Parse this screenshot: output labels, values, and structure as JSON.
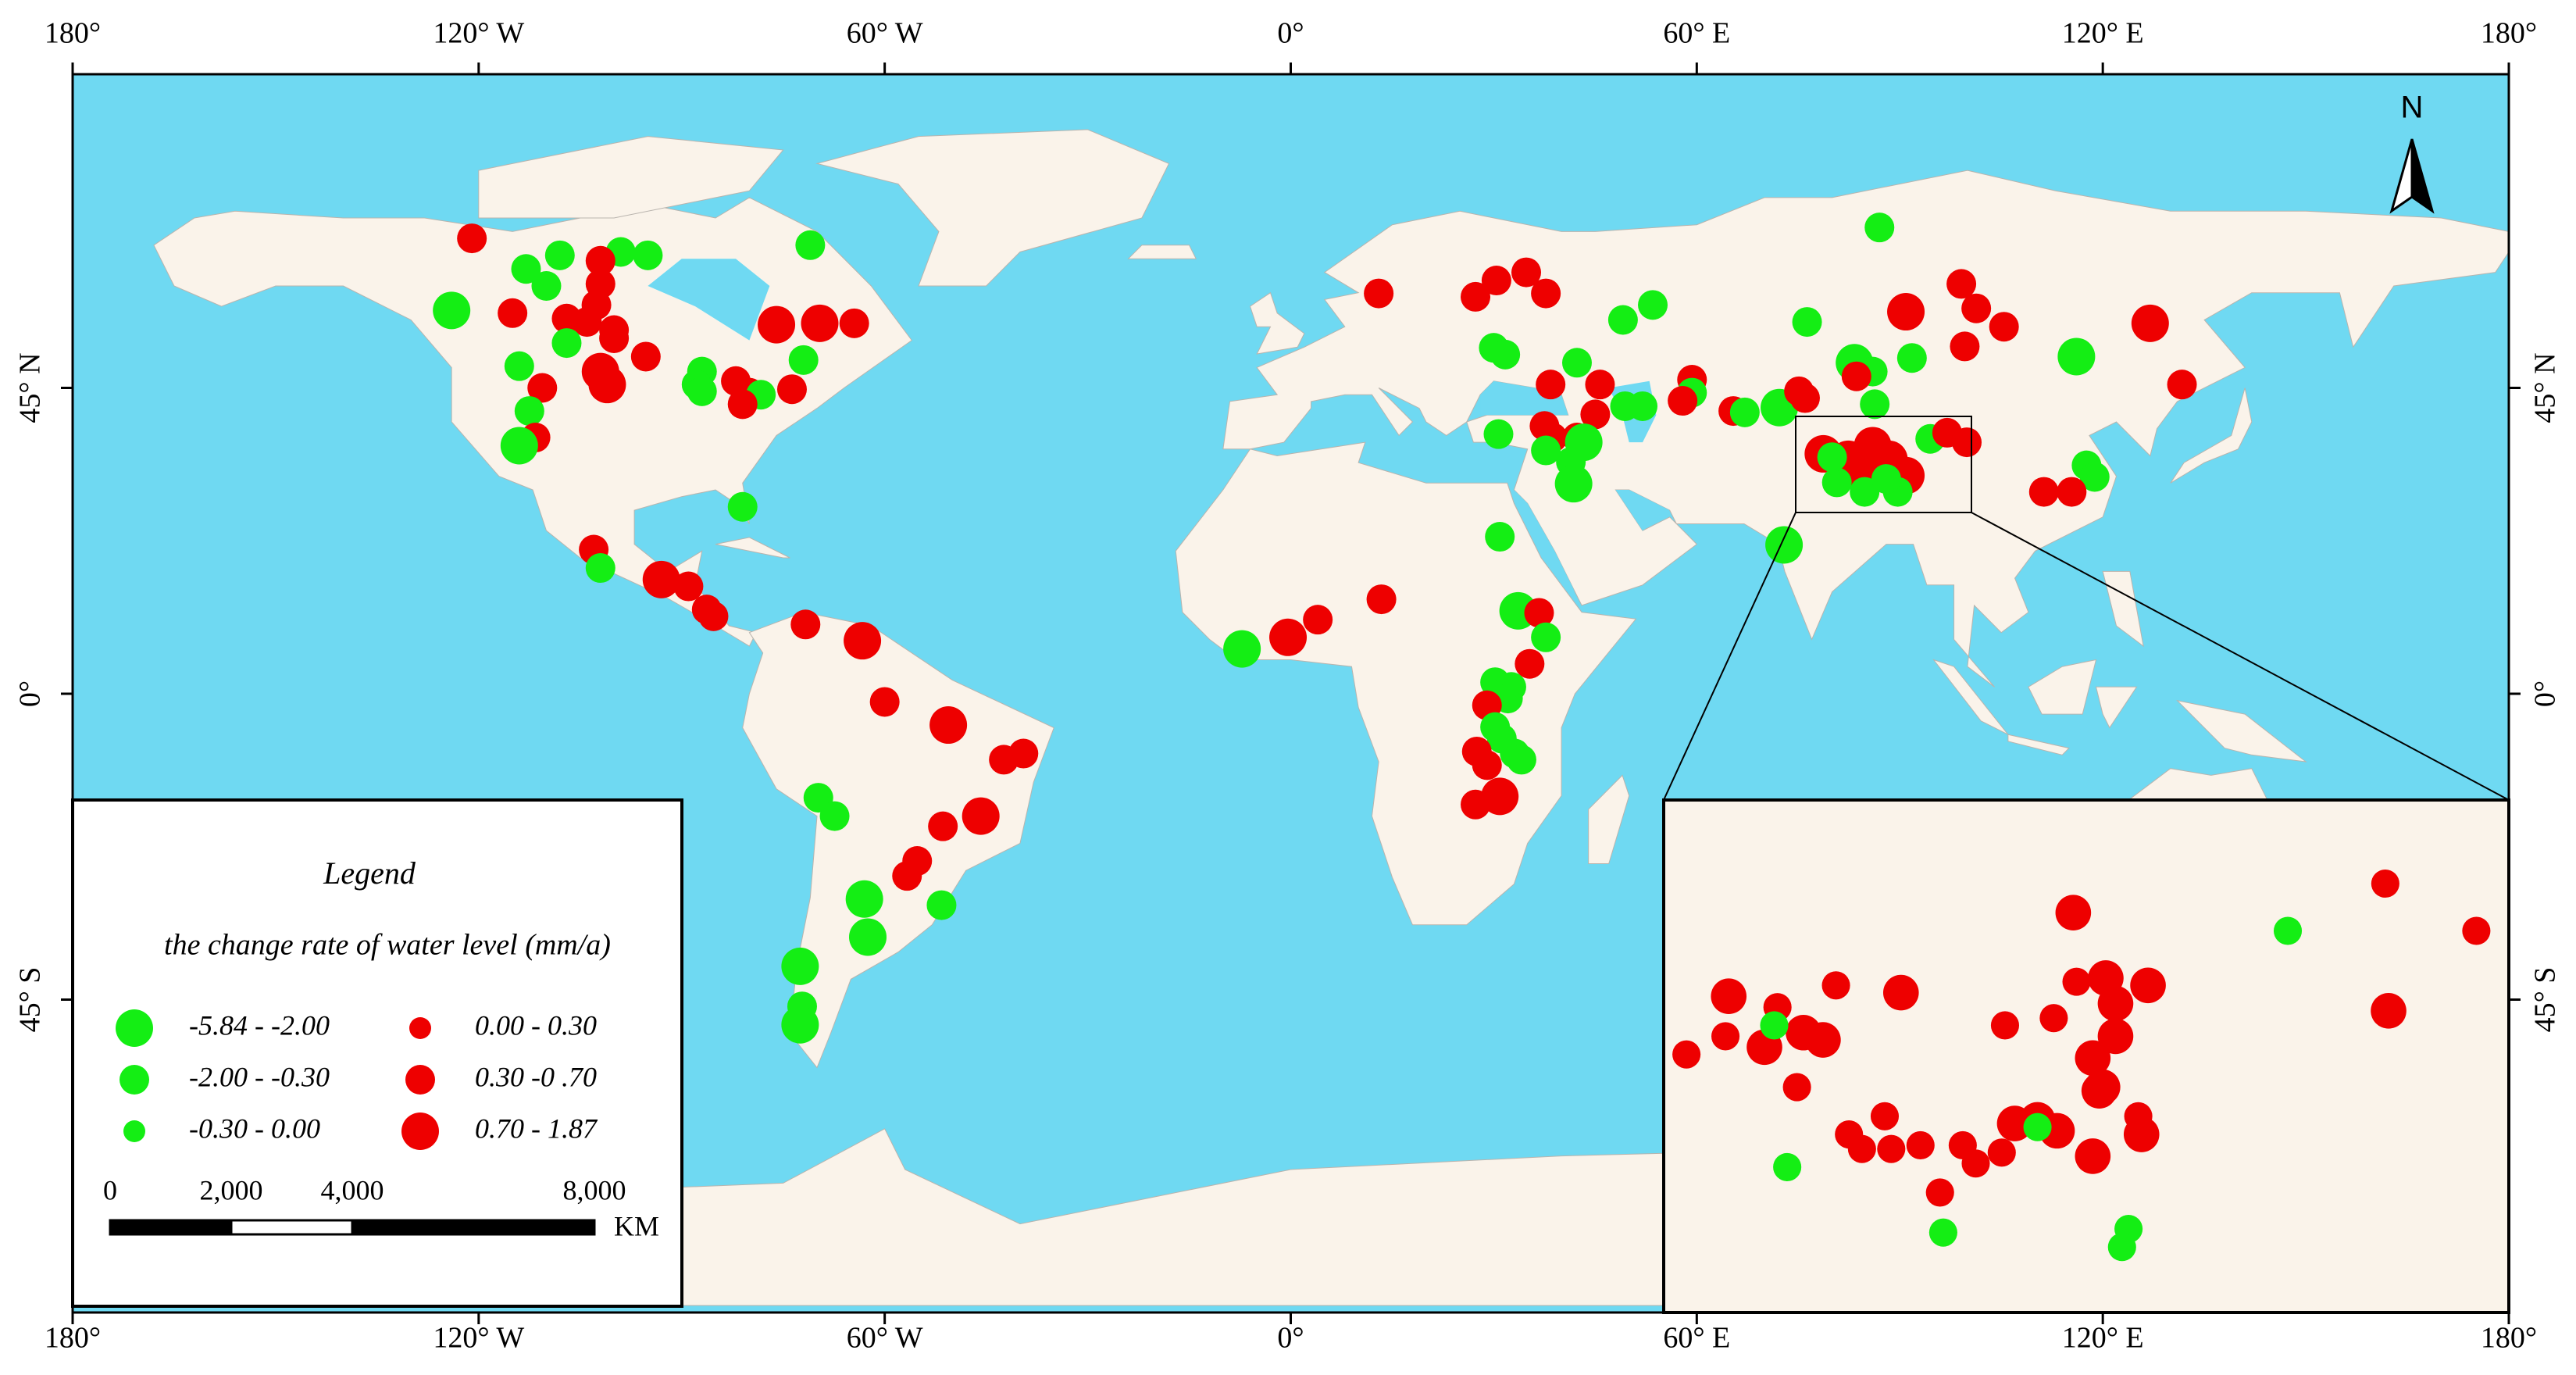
{
  "map": {
    "lon_ticks": [
      {
        "value": -180,
        "label": "180°"
      },
      {
        "value": -120,
        "label": "120° W"
      },
      {
        "value": -60,
        "label": "60° W"
      },
      {
        "value": 0,
        "label": "0°"
      },
      {
        "value": 60,
        "label": "60° E"
      },
      {
        "value": 120,
        "label": "120° E"
      },
      {
        "value": 180,
        "label": "180°"
      }
    ],
    "lat_ticks": [
      {
        "value": 45,
        "label": "45° N"
      },
      {
        "value": 0,
        "label": "0°"
      },
      {
        "value": -45,
        "label": "45° S"
      }
    ],
    "north": "N"
  },
  "legend": {
    "title": "Legend",
    "subtitle": "the change rate of water level (mm/a)",
    "classes": [
      {
        "label": "-5.84 - -2.00",
        "color": "#14ee14"
      },
      {
        "label": "-2.00 - -0.30",
        "color": "#14ee14"
      },
      {
        "label": "-0.30 - 0.00",
        "color": "#14ee14"
      },
      {
        "label": "0.00 - 0.30",
        "color": "#ee0000"
      },
      {
        "label": "0.30 -0 .70",
        "color": "#ee0000"
      },
      {
        "label": "0.70 - 1.87",
        "color": "#ee0000"
      }
    ]
  },
  "scale_bar": {
    "ticks": [
      0,
      {
        "value": 2000,
        "label": "2,000"
      },
      {
        "value": 4000,
        "label": "4,000"
      },
      {
        "value": 8000,
        "label": "8,000"
      }
    ],
    "unit": "KM"
  },
  "points": [
    [
      -121,
      67,
      4
    ],
    [
      -113,
      62.5,
      1
    ],
    [
      -108,
      64.5,
      1
    ],
    [
      -99,
      65,
      1
    ],
    [
      -95,
      64.5,
      1
    ],
    [
      -71,
      66,
      1
    ],
    [
      -110,
      60,
      1
    ],
    [
      -102,
      63.7,
      4
    ],
    [
      -102,
      60.3,
      4
    ],
    [
      -102.6,
      57.2,
      4
    ],
    [
      -124,
      56.4,
      0
    ],
    [
      -115,
      56,
      4
    ],
    [
      -107,
      55.2,
      4
    ],
    [
      -104,
      54.7,
      4
    ],
    [
      -100,
      53.5,
      4
    ],
    [
      -107,
      51.6,
      1
    ],
    [
      -100,
      52.3,
      4
    ],
    [
      -95.3,
      49.6,
      4
    ],
    [
      -114,
      48.2,
      1
    ],
    [
      -102,
      47.4,
      5
    ],
    [
      -101,
      45.5,
      5
    ],
    [
      -110.6,
      45,
      4
    ],
    [
      -112.5,
      41.6,
      1
    ],
    [
      -111.6,
      37.7,
      4
    ],
    [
      -114,
      36.5,
      0
    ],
    [
      -87,
      47.4,
      1
    ],
    [
      -87.8,
      45.5,
      1
    ],
    [
      -87,
      44.5,
      1
    ],
    [
      -82,
      46,
      4
    ],
    [
      -80,
      44.3,
      4
    ],
    [
      -78.3,
      44,
      1
    ],
    [
      -81,
      42.6,
      4
    ],
    [
      -76,
      54.3,
      5
    ],
    [
      -69.6,
      54.5,
      5
    ],
    [
      -64.5,
      54.5,
      4
    ],
    [
      -72,
      49.1,
      1
    ],
    [
      -73.7,
      44.8,
      4
    ],
    [
      -81,
      27.5,
      1
    ],
    [
      -103,
      21.2,
      4
    ],
    [
      -102,
      18.5,
      1
    ],
    [
      -93,
      16.8,
      5
    ],
    [
      -89,
      15.8,
      4
    ],
    [
      -86.3,
      12.4,
      4
    ],
    [
      -85.3,
      11.4,
      4
    ],
    [
      -71.7,
      10.2,
      4
    ],
    [
      -63.3,
      7.8,
      5
    ],
    [
      -60,
      -1.2,
      4
    ],
    [
      -50.6,
      -4.6,
      5
    ],
    [
      -42.4,
      -9.7,
      4
    ],
    [
      -39.5,
      -8.8,
      4
    ],
    [
      -69.8,
      -15.3,
      1
    ],
    [
      -67.4,
      -18,
      1
    ],
    [
      -51.4,
      -19.5,
      4
    ],
    [
      -45.8,
      -18,
      5
    ],
    [
      -56.7,
      -26.8,
      4
    ],
    [
      -55.2,
      -24.6,
      4
    ],
    [
      -63,
      -30.2,
      0
    ],
    [
      -51.6,
      -31.1,
      1
    ],
    [
      -62.5,
      -35.8,
      0
    ],
    [
      -72.5,
      -40.1,
      0
    ],
    [
      -72.2,
      -46,
      1
    ],
    [
      -72.5,
      -48.7,
      0
    ],
    [
      13,
      58.9,
      4
    ],
    [
      27.3,
      58.4,
      4
    ],
    [
      30.4,
      60.8,
      4
    ],
    [
      34.8,
      62,
      4
    ],
    [
      37.7,
      58.9,
      4
    ],
    [
      87,
      68.6,
      1
    ],
    [
      53.5,
      57.2,
      1
    ],
    [
      49.1,
      55,
      1
    ],
    [
      30,
      50.9,
      1
    ],
    [
      31.7,
      49.9,
      1
    ],
    [
      42.3,
      48.7,
      1
    ],
    [
      38.4,
      45.5,
      4
    ],
    [
      45.7,
      45.5,
      4
    ],
    [
      59.3,
      46.2,
      4
    ],
    [
      59.3,
      44.3,
      1
    ],
    [
      57.9,
      43.1,
      4
    ],
    [
      49.4,
      42.3,
      1
    ],
    [
      52,
      42.3,
      1
    ],
    [
      45,
      41.1,
      4
    ],
    [
      37.5,
      39.4,
      4
    ],
    [
      30.7,
      38.2,
      1
    ],
    [
      38.7,
      37.7,
      4
    ],
    [
      42.3,
      37.7,
      4
    ],
    [
      43.3,
      37,
      0
    ],
    [
      41.4,
      34.1,
      1
    ],
    [
      37.7,
      35.8,
      1
    ],
    [
      41.8,
      30.9,
      0
    ],
    [
      65.4,
      41.6,
      4
    ],
    [
      67.1,
      41.4,
      1
    ],
    [
      72.2,
      42.1,
      0
    ],
    [
      75.1,
      44.5,
      4
    ],
    [
      76,
      43.5,
      4
    ],
    [
      76.3,
      54.7,
      1
    ],
    [
      83.3,
      48.7,
      0
    ],
    [
      86,
      47.4,
      1
    ],
    [
      83.6,
      46.7,
      4
    ],
    [
      90.9,
      56.2,
      5
    ],
    [
      91.8,
      49.4,
      1
    ],
    [
      99.1,
      60.3,
      4
    ],
    [
      101.3,
      56.7,
      4
    ],
    [
      105.4,
      54,
      4
    ],
    [
      99.6,
      51.1,
      4
    ],
    [
      94.5,
      37.5,
      1
    ],
    [
      97,
      38.4,
      4
    ],
    [
      99.9,
      37,
      4
    ],
    [
      86.3,
      42.6,
      1
    ],
    [
      116.1,
      49.6,
      0
    ],
    [
      127,
      54.5,
      5
    ],
    [
      131.7,
      45.5,
      4
    ],
    [
      117.6,
      33.6,
      1
    ],
    [
      118.8,
      31.9,
      1
    ],
    [
      111.3,
      29.7,
      4
    ],
    [
      115.4,
      29.7,
      4
    ],
    [
      78.7,
      35.3,
      5
    ],
    [
      82.4,
      34.5,
      5
    ],
    [
      86,
      36.5,
      5
    ],
    [
      88.4,
      34.5,
      5
    ],
    [
      90.9,
      32.1,
      5
    ],
    [
      83.6,
      32.8,
      5
    ],
    [
      80.7,
      31.1,
      1
    ],
    [
      84.8,
      29.7,
      1
    ],
    [
      89.7,
      29.7,
      1
    ],
    [
      88,
      31.6,
      1
    ],
    [
      80,
      34.8,
      1
    ],
    [
      72.9,
      21.9,
      0
    ],
    [
      30.9,
      23.1,
      1
    ],
    [
      13.4,
      13.9,
      4
    ],
    [
      4,
      10.9,
      4
    ],
    [
      -0.4,
      8.3,
      5
    ],
    [
      -7.2,
      6.6,
      0
    ],
    [
      33.6,
      12.2,
      0
    ],
    [
      36.7,
      11.9,
      4
    ],
    [
      37.7,
      8.3,
      1
    ],
    [
      35.3,
      4.4,
      4
    ],
    [
      30.2,
      1.7,
      1
    ],
    [
      31.4,
      0,
      1
    ],
    [
      32.6,
      1,
      1
    ],
    [
      32.1,
      -0.7,
      1
    ],
    [
      29,
      -1.7,
      4
    ],
    [
      30.2,
      -4.9,
      1
    ],
    [
      31.2,
      -6.6,
      1
    ],
    [
      33.1,
      -8.8,
      1
    ],
    [
      34.1,
      -9.7,
      1
    ],
    [
      27.5,
      -8.5,
      4
    ],
    [
      29,
      -10.5,
      4
    ],
    [
      27.3,
      -16.3,
      4
    ],
    [
      30.9,
      -15.1,
      5
    ]
  ],
  "inset_points": [
    [
      87.2,
      37.7,
      5
    ],
    [
      96.8,
      38.5,
      4
    ],
    [
      93.8,
      37.2,
      1
    ],
    [
      99.6,
      37.2,
      4
    ],
    [
      76.6,
      35.4,
      5
    ],
    [
      78.1,
      35.1,
      4
    ],
    [
      79.9,
      35.7,
      4
    ],
    [
      81.9,
      35.5,
      5
    ],
    [
      87.3,
      35.8,
      4
    ],
    [
      88.2,
      35.9,
      5
    ],
    [
      88.5,
      35.2,
      5
    ],
    [
      89.5,
      35.7,
      5
    ],
    [
      96.9,
      35,
      5
    ],
    [
      75.3,
      33.8,
      4
    ],
    [
      76.5,
      34.3,
      4
    ],
    [
      77.7,
      34,
      5
    ],
    [
      78.9,
      34.4,
      5
    ],
    [
      79.5,
      34.2,
      5
    ],
    [
      78,
      34.6,
      1
    ],
    [
      85.1,
      34.6,
      4
    ],
    [
      86.6,
      34.8,
      4
    ],
    [
      88.5,
      34.3,
      5
    ],
    [
      87.8,
      33.7,
      5
    ],
    [
      88.1,
      32.9,
      5
    ],
    [
      78.7,
      32.9,
      4
    ],
    [
      81.4,
      32.1,
      4
    ],
    [
      80.3,
      31.6,
      4
    ],
    [
      80.7,
      31.2,
      4
    ],
    [
      81.6,
      31.2,
      4
    ],
    [
      82.5,
      31.3,
      4
    ],
    [
      83.8,
      31.3,
      4
    ],
    [
      84.2,
      30.8,
      4
    ],
    [
      85,
      31.1,
      4
    ],
    [
      85.4,
      31.9,
      5
    ],
    [
      86.1,
      32,
      5
    ],
    [
      86.7,
      31.7,
      5
    ],
    [
      88,
      32.8,
      5
    ],
    [
      89.2,
      32.1,
      4
    ],
    [
      89.3,
      31.6,
      5
    ],
    [
      87.8,
      31,
      5
    ],
    [
      86.1,
      31.8,
      1
    ],
    [
      78.4,
      30.7,
      1
    ],
    [
      83.1,
      30,
      4
    ],
    [
      83.2,
      28.9,
      1
    ],
    [
      88.9,
      29,
      1
    ],
    [
      88.7,
      28.5,
      1
    ]
  ]
}
